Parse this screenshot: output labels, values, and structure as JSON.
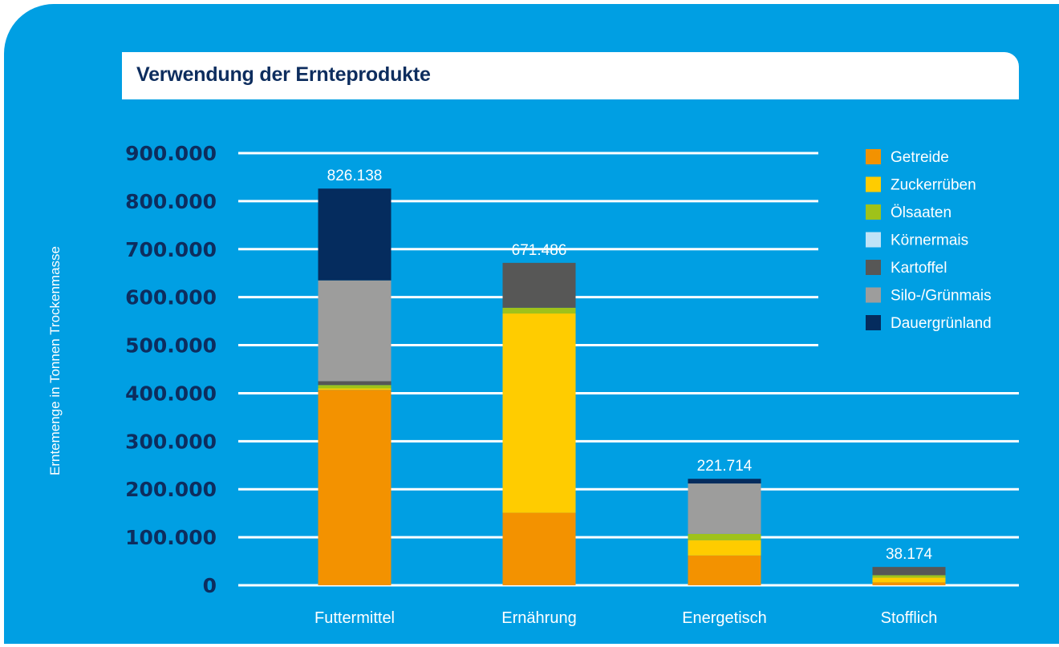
{
  "chart_data": {
    "type": "bar",
    "stacked": true,
    "title": "Verwendung der Ernteprodukte",
    "xlabel": "",
    "ylabel": "Erntemenge in Tonnen Trockenmasse",
    "ylim": [
      0,
      900000
    ],
    "yticks": [
      0,
      100000,
      200000,
      300000,
      400000,
      500000,
      600000,
      700000,
      800000,
      900000
    ],
    "ytick_labels": [
      "0",
      "100.000",
      "200.000",
      "300.000",
      "400.000",
      "500.000",
      "600.000",
      "700.000",
      "800.000",
      "900.000"
    ],
    "grid": true,
    "legend_position": "top-right",
    "categories": [
      "Futtermittel",
      "Ernährung",
      "Energetisch",
      "Stofflich"
    ],
    "totals": [
      826138,
      671486,
      221714,
      38174
    ],
    "total_labels": [
      "826.138",
      "671.486",
      "221.714",
      "38.174"
    ],
    "series": [
      {
        "name": "Getreide",
        "color": "#f39200",
        "values": [
          407000,
          151000,
          62000,
          6000
        ]
      },
      {
        "name": "Zuckerrüben",
        "color": "#ffcc00",
        "values": [
          3000,
          415000,
          32000,
          10000
        ]
      },
      {
        "name": "Ölsaaten",
        "color": "#9fc21a",
        "values": [
          7000,
          12000,
          13000,
          5000
        ]
      },
      {
        "name": "Körnermais",
        "color": "#bfe3f7",
        "values": [
          0,
          0,
          0,
          0
        ]
      },
      {
        "name": "Kartoffel",
        "color": "#575756",
        "values": [
          8000,
          93486,
          0,
          17174
        ]
      },
      {
        "name": "Silo-/Grünmais",
        "color": "#9d9d9c",
        "values": [
          210000,
          0,
          105000,
          0
        ]
      },
      {
        "name": "Dauergrünland",
        "color": "#052c5e",
        "values": [
          191138,
          0,
          9714,
          0
        ]
      }
    ]
  }
}
